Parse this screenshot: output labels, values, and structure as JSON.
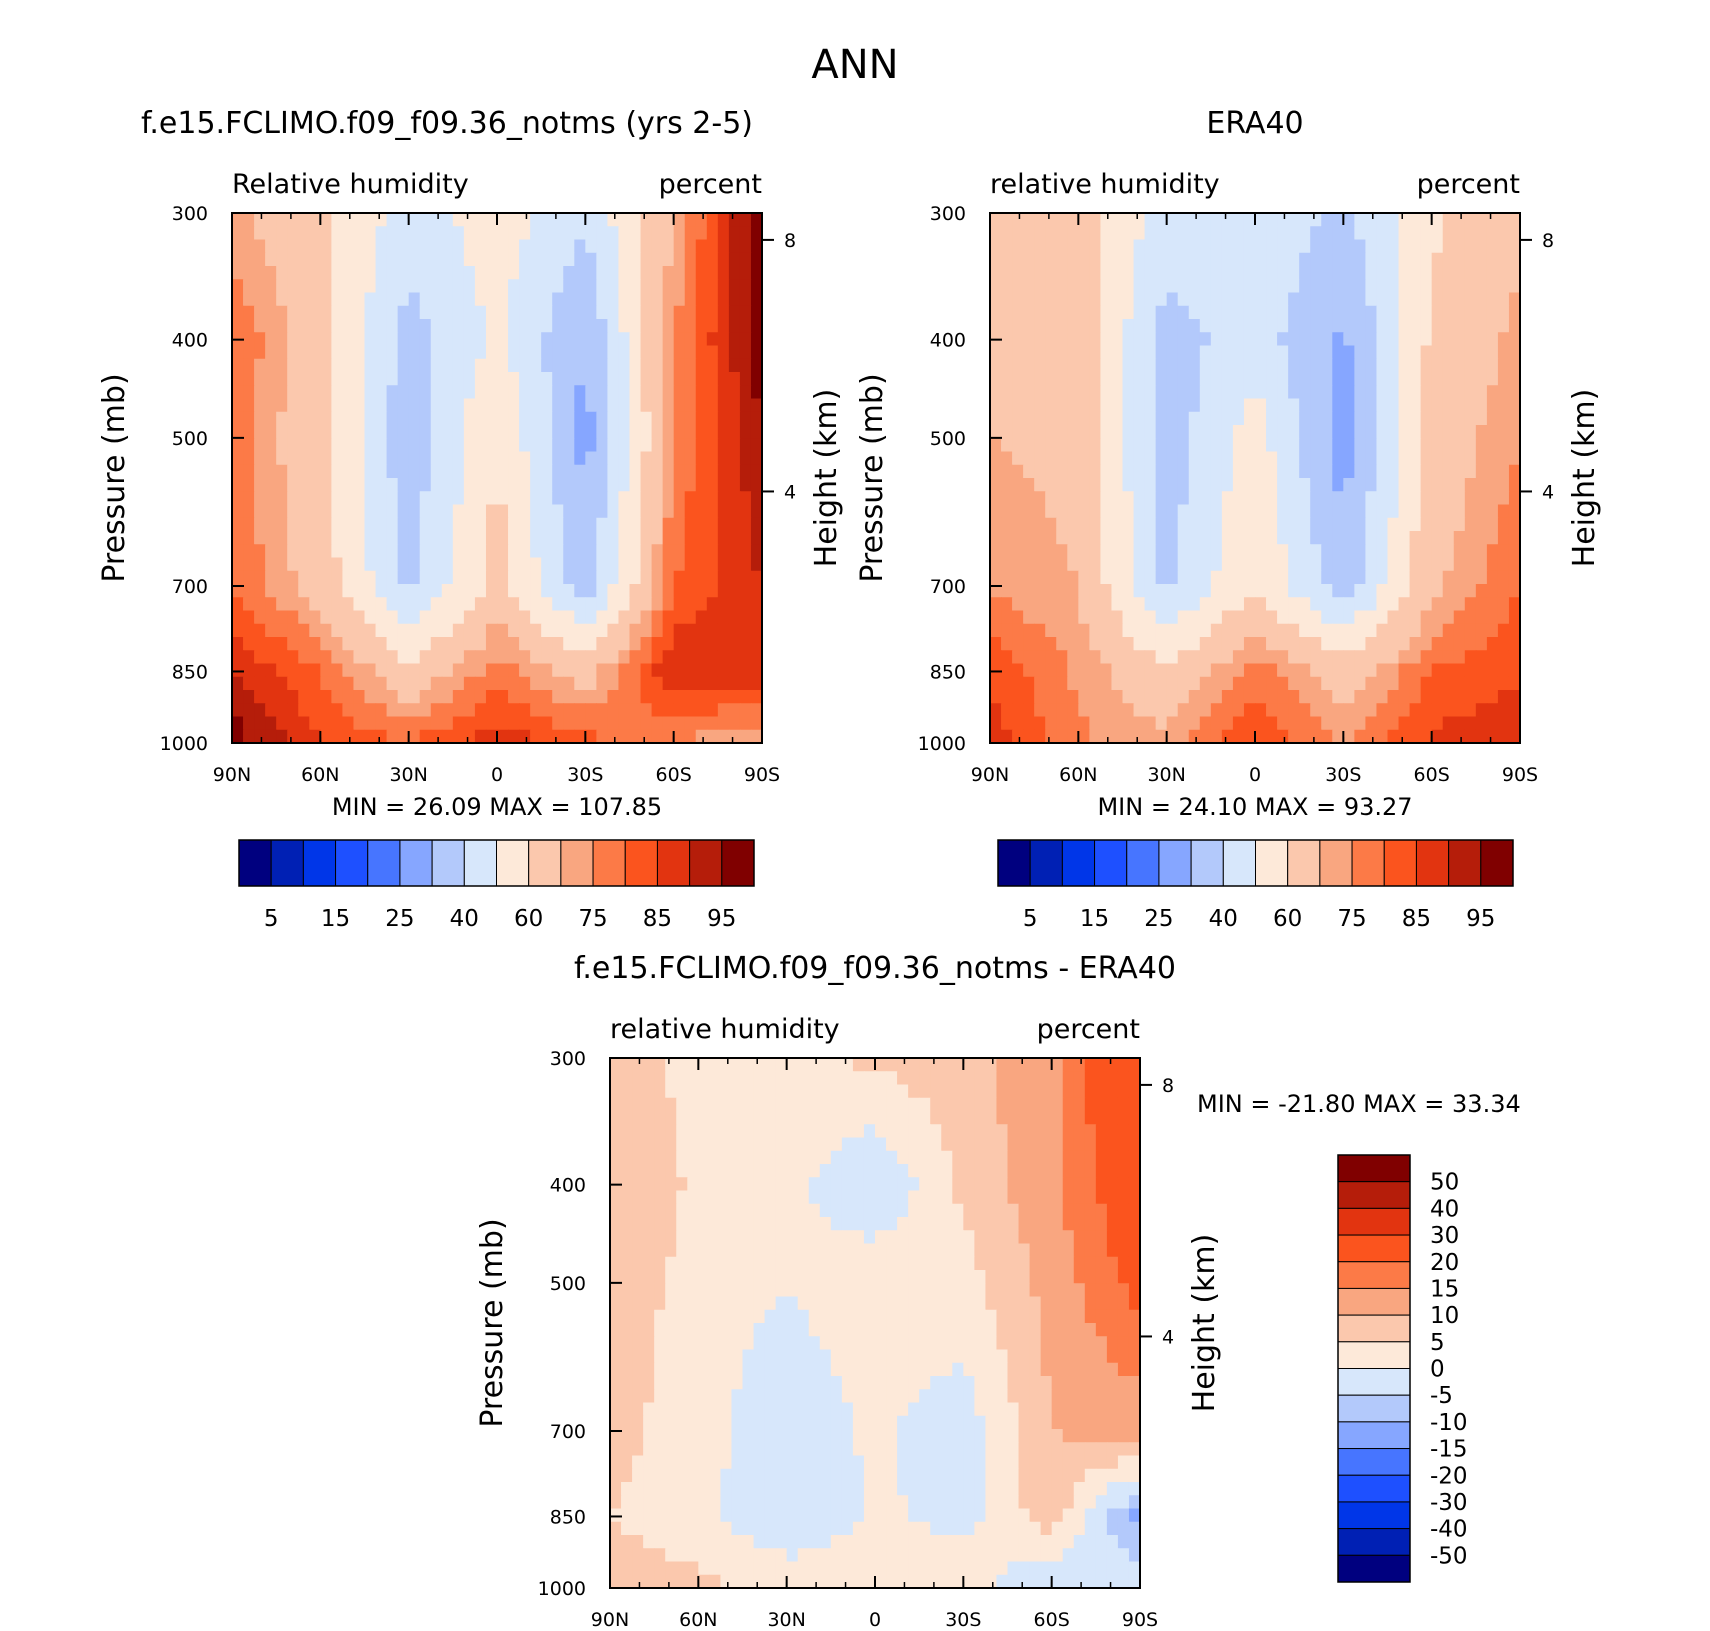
{
  "figure": {
    "title": "ANN"
  },
  "colors": {
    "rh_scale": [
      "#00007f",
      "#0020b4",
      "#0036e8",
      "#1e50ff",
      "#4775ff",
      "#86a6ff",
      "#b3c9fb",
      "#d7e7fb",
      "#fde9d9",
      "#fbc8ad",
      "#f9a680",
      "#fc7a47",
      "#fb541e",
      "#e23410",
      "#b51d0a",
      "#800000"
    ],
    "diff_scale": [
      "#00007f",
      "#0020b4",
      "#0036e8",
      "#1e50ff",
      "#4775ff",
      "#86a6ff",
      "#b3c9fb",
      "#d7e7fb",
      "#fde9d9",
      "#fbc8ad",
      "#f9a680",
      "#fc7a47",
      "#fb541e",
      "#e23410",
      "#b51d0a",
      "#800000"
    ]
  },
  "axes": {
    "x_ticks": [
      "90N",
      "60N",
      "30N",
      "0",
      "30S",
      "60S",
      "90S"
    ],
    "p_ticks": [
      "300",
      "400",
      "500",
      "700",
      "850",
      "1000"
    ],
    "h_ticks": [
      "8",
      "4"
    ],
    "ylabel": "Pressure (mb)",
    "ylabel_right": "Height (km)"
  },
  "panels": {
    "model": {
      "title": "f.e15.FCLIMO.f09_f09.36_notms (yrs 2-5)",
      "left_label": "Relative humidity",
      "right_label": "percent",
      "stats": "MIN =   26.09   MAX =  107.85"
    },
    "obs": {
      "title": "ERA40",
      "left_label": "relative humidity",
      "right_label": "percent",
      "stats": "MIN =   24.10   MAX =   93.27"
    },
    "diff": {
      "title": "f.e15.FCLIMO.f09_f09.36_notms - ERA40",
      "left_label": "relative humidity",
      "right_label": "percent",
      "stats": "MIN = -21.80   MAX =   33.34"
    }
  },
  "colorbars": {
    "rh_labels": [
      "5",
      "15",
      "25",
      "40",
      "60",
      "75",
      "85",
      "95"
    ],
    "diff_labels": [
      "50",
      "40",
      "30",
      "20",
      "15",
      "10",
      "5",
      "0",
      "-5",
      "-10",
      "-15",
      "-20",
      "-30",
      "-40",
      "-50"
    ]
  },
  "chart_data": [
    {
      "type": "heatmap",
      "title": "f.e15.FCLIMO.f09_f09.36_notms (yrs 2-5)",
      "ylabel": "Pressure (mb)",
      "x": [
        "90N",
        "60N",
        "30N",
        "0",
        "30S",
        "60S",
        "90S"
      ],
      "y": [
        300,
        400,
        500,
        700,
        850,
        1000
      ],
      "values": [
        [
          72,
          62,
          45,
          55,
          42,
          70,
          100
        ],
        [
          80,
          65,
          36,
          52,
          30,
          75,
          98
        ],
        [
          78,
          63,
          33,
          60,
          26,
          75,
          95
        ],
        [
          80,
          66,
          38,
          64,
          35,
          80,
          90
        ],
        [
          90,
          80,
          63,
          78,
          66,
          90,
          88
        ],
        [
          98,
          85,
          80,
          88,
          82,
          75,
          70
        ]
      ],
      "min": 26.09,
      "max": 107.85,
      "units": "percent"
    },
    {
      "type": "heatmap",
      "title": "ERA40",
      "ylabel": "Pressure (mb)",
      "x": [
        "90N",
        "60N",
        "30N",
        "0",
        "30S",
        "60S",
        "90S"
      ],
      "y": [
        300,
        400,
        500,
        700,
        850,
        1000
      ],
      "values": [
        [
          62,
          65,
          45,
          48,
          38,
          58,
          68
        ],
        [
          68,
          66,
          36,
          45,
          28,
          62,
          72
        ],
        [
          70,
          68,
          34,
          55,
          25,
          64,
          75
        ],
        [
          74,
          70,
          38,
          60,
          34,
          68,
          80
        ],
        [
          84,
          74,
          62,
          78,
          65,
          80,
          84
        ],
        [
          88,
          76,
          72,
          85,
          74,
          86,
          90
        ]
      ],
      "min": 24.1,
      "max": 93.27,
      "units": "percent"
    },
    {
      "type": "heatmap",
      "title": "f.e15.FCLIMO.f09_f09.36_notms - ERA40",
      "ylabel": "Pressure (mb)",
      "x": [
        "90N",
        "60N",
        "30N",
        "0",
        "30S",
        "60S",
        "90S"
      ],
      "y": [
        300,
        400,
        500,
        700,
        850,
        1000
      ],
      "values": [
        [
          8,
          3,
          4,
          6,
          8,
          14,
          30
        ],
        [
          10,
          4,
          2,
          -5,
          6,
          14,
          26
        ],
        [
          8,
          3,
          0,
          4,
          3,
          12,
          22
        ],
        [
          7,
          2,
          -4,
          1,
          -3,
          10,
          12
        ],
        [
          5,
          2,
          -5,
          1,
          -2,
          8,
          -12
        ],
        [
          8,
          6,
          4,
          3,
          4,
          -6,
          0
        ]
      ],
      "min": -21.8,
      "max": 33.34,
      "units": "percent"
    }
  ]
}
